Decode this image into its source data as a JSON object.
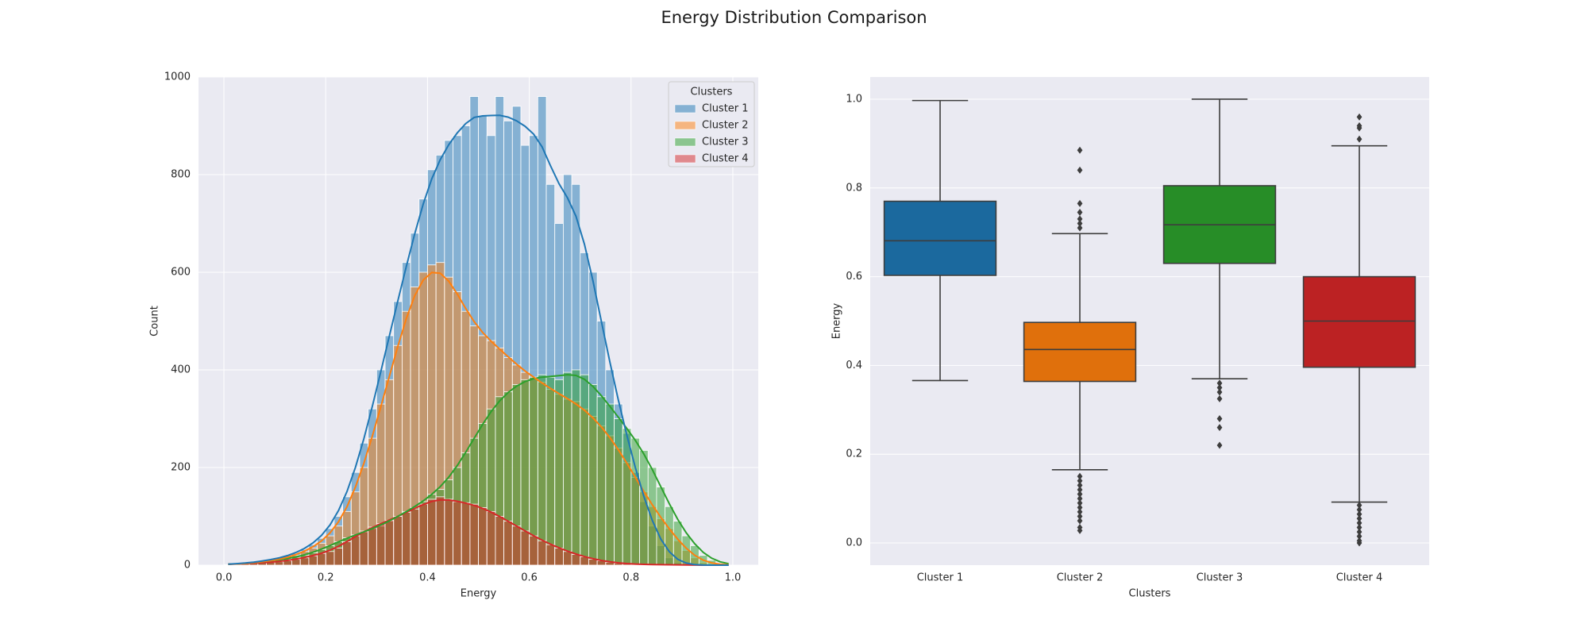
{
  "figure": {
    "title": "Energy Distribution Comparison"
  },
  "colors": {
    "cluster_1": "#1f77b4",
    "cluster_2": "#ff7f0e",
    "cluster_3": "#2ca02c",
    "cluster_4": "#d62728",
    "panel_background": "#eaeaf2",
    "grid": "#ffffff"
  },
  "chart_data": [
    {
      "type": "histogram",
      "stacked": true,
      "kde": true,
      "xlabel": "Energy",
      "ylabel": "Count",
      "xlim": [
        -0.05,
        1.05
      ],
      "ylim": [
        0,
        1000
      ],
      "xticks": [
        0.0,
        0.2,
        0.4,
        0.6,
        0.8,
        1.0
      ],
      "xtick_labels": [
        "0.0",
        "0.2",
        "0.4",
        "0.6",
        "0.8",
        "1.0"
      ],
      "yticks": [
        0,
        200,
        400,
        600,
        800,
        1000
      ],
      "ytick_labels": [
        "0",
        "200",
        "400",
        "600",
        "800",
        "1000"
      ],
      "grid": true,
      "legend": {
        "title": "Clusters",
        "placement": "top-right",
        "entries": [
          "Cluster 1",
          "Cluster 2",
          "Cluster 3",
          "Cluster 4"
        ]
      },
      "bin_start": 0.0,
      "bin_width": 0.01667,
      "stack_order_bottom_to_top": [
        "Cluster 4",
        "Cluster 3",
        "Cluster 2",
        "Cluster 1"
      ],
      "cumulative_totals": [
        {
          "name": "Cluster 4",
          "values": [
            1,
            2,
            3,
            4,
            5,
            6,
            7,
            9,
            12,
            15,
            19,
            24,
            28,
            35,
            48,
            60,
            70,
            78,
            85,
            92,
            100,
            108,
            115,
            125,
            135,
            140,
            135,
            130,
            128,
            125,
            118,
            110,
            100,
            90,
            80,
            70,
            60,
            50,
            42,
            35,
            28,
            22,
            17,
            12,
            9,
            6,
            4,
            3,
            2,
            1,
            1,
            1,
            1,
            1,
            0,
            0,
            0,
            0,
            0,
            0
          ]
        },
        {
          "name": "Cluster 3",
          "values": [
            1,
            2,
            3,
            5,
            7,
            9,
            11,
            13,
            16,
            20,
            25,
            32,
            40,
            48,
            56,
            62,
            68,
            75,
            80,
            90,
            100,
            110,
            118,
            130,
            145,
            155,
            175,
            200,
            230,
            260,
            290,
            320,
            345,
            355,
            370,
            380,
            385,
            390,
            385,
            380,
            395,
            400,
            390,
            370,
            345,
            330,
            300,
            280,
            260,
            235,
            200,
            160,
            120,
            90,
            60,
            40,
            20,
            10,
            0,
            0
          ]
        },
        {
          "name": "Cluster 2",
          "values": [
            1,
            2,
            3,
            5,
            7,
            9,
            11,
            15,
            20,
            28,
            35,
            45,
            60,
            80,
            110,
            150,
            200,
            260,
            330,
            380,
            450,
            520,
            570,
            600,
            615,
            620,
            590,
            560,
            520,
            490,
            470,
            460,
            445,
            425,
            410,
            395,
            385,
            375,
            360,
            350,
            340,
            335,
            320,
            305,
            285,
            265,
            240,
            210,
            180,
            150,
            120,
            95,
            75,
            50,
            30,
            15,
            5,
            2,
            0,
            0
          ]
        },
        {
          "name": "Cluster 1",
          "values": [
            1,
            2,
            4,
            6,
            8,
            11,
            14,
            18,
            24,
            32,
            42,
            55,
            75,
            100,
            140,
            190,
            250,
            320,
            400,
            470,
            540,
            620,
            680,
            750,
            810,
            840,
            870,
            880,
            900,
            960,
            920,
            880,
            960,
            910,
            940,
            860,
            880,
            960,
            780,
            700,
            800,
            780,
            640,
            600,
            500,
            400,
            330,
            270,
            190,
            130,
            80,
            40,
            15,
            5,
            0,
            0,
            0,
            0,
            0,
            0
          ]
        }
      ]
    },
    {
      "type": "box",
      "xlabel": "Clusters",
      "ylabel": "Energy",
      "categories": [
        "Cluster 1",
        "Cluster 2",
        "Cluster 3",
        "Cluster 4"
      ],
      "ylim": [
        -0.05,
        1.05
      ],
      "yticks": [
        0.0,
        0.2,
        0.4,
        0.6,
        0.8,
        1.0
      ],
      "ytick_labels": [
        "0.0",
        "0.2",
        "0.4",
        "0.6",
        "0.8",
        "1.0"
      ],
      "grid": true,
      "boxes": [
        {
          "name": "Cluster 1",
          "whisker_low": 0.366,
          "q1": 0.603,
          "median": 0.681,
          "q3": 0.77,
          "whisker_high": 0.997,
          "outliers": []
        },
        {
          "name": "Cluster 2",
          "whisker_low": 0.165,
          "q1": 0.364,
          "median": 0.436,
          "q3": 0.497,
          "whisker_high": 0.697,
          "outliers": [
            0.71,
            0.72,
            0.73,
            0.745,
            0.765,
            0.84,
            0.885,
            0.15,
            0.14,
            0.13,
            0.12,
            0.11,
            0.1,
            0.09,
            0.08,
            0.07,
            0.06,
            0.05,
            0.035,
            0.028
          ]
        },
        {
          "name": "Cluster 3",
          "whisker_low": 0.37,
          "q1": 0.63,
          "median": 0.717,
          "q3": 0.805,
          "whisker_high": 1.0,
          "outliers": [
            0.36,
            0.35,
            0.34,
            0.325,
            0.28,
            0.26,
            0.22
          ]
        },
        {
          "name": "Cluster 4",
          "whisker_low": 0.092,
          "q1": 0.396,
          "median": 0.5,
          "q3": 0.6,
          "whisker_high": 0.895,
          "outliers": [
            0.91,
            0.935,
            0.94,
            0.96,
            0.085,
            0.075,
            0.065,
            0.055,
            0.045,
            0.035,
            0.025,
            0.015,
            0.005,
            0.0
          ]
        }
      ]
    }
  ]
}
